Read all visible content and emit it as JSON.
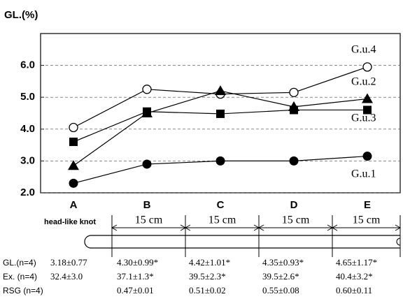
{
  "chart_data": {
    "type": "line",
    "title": "GL.(%)",
    "categories": [
      "A",
      "B",
      "C",
      "D",
      "E"
    ],
    "ylim": [
      2,
      7
    ],
    "yticks": [
      {
        "value": 2,
        "label": "2.0"
      },
      {
        "value": 3,
        "label": "3.0"
      },
      {
        "value": 4,
        "label": "4.0"
      },
      {
        "value": 5,
        "label": "5.0"
      },
      {
        "value": 6,
        "label": "6.0"
      }
    ],
    "grid": true,
    "series": [
      {
        "name": "G.u.4",
        "color": "#000000",
        "marker": "circle-open",
        "values": [
          4.05,
          5.25,
          5.1,
          5.15,
          5.95
        ]
      },
      {
        "name": "G.u.2",
        "color": "#000000",
        "marker": "triangle",
        "values": [
          2.85,
          4.5,
          5.2,
          4.7,
          4.95
        ]
      },
      {
        "name": "G.u.3",
        "color": "#000000",
        "marker": "square",
        "values": [
          3.6,
          4.55,
          4.48,
          4.6,
          4.6
        ]
      },
      {
        "name": "G.u.1",
        "color": "#000000",
        "marker": "circle",
        "values": [
          2.3,
          2.9,
          3.0,
          3.0,
          3.15
        ]
      }
    ]
  },
  "diagram": {
    "label": "head-like knot",
    "segments": [
      "15 cm",
      "15 cm",
      "15 cm",
      "15 cm"
    ]
  },
  "table": {
    "rows": [
      {
        "label": "GL.(n=4)",
        "cells": [
          "3.18±0.77",
          "4.30±0.99*",
          "4.42±1.01*",
          "4.35±0.93*",
          "4.65±1.17*"
        ]
      },
      {
        "label": "Ex. (n=4)",
        "cells": [
          "32.4±3.0",
          "37.1±1.3*",
          "39.5±2.3*",
          "39.5±2.6*",
          "40.4±3.2*"
        ]
      },
      {
        "label": "RSG (n=4)",
        "cells": [
          null,
          "0.47±0.01",
          "0.51±0.02",
          "0.55±0.08",
          "0.60±0.11"
        ]
      }
    ]
  }
}
